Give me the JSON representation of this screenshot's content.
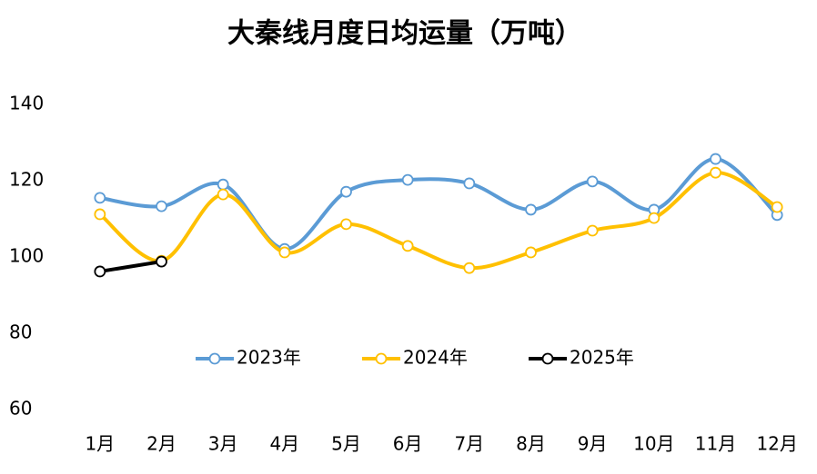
{
  "chart_data": {
    "type": "line",
    "title": "大秦线月度日均运量（万吨）",
    "categories": [
      "1月",
      "2月",
      "3月",
      "4月",
      "5月",
      "6月",
      "7月",
      "8月",
      "9月",
      "10月",
      "11月",
      "12月"
    ],
    "series": [
      {
        "name": "2023年",
        "color": "#5b9bd5",
        "values": [
          115.5,
          113.3,
          119,
          102.1,
          117.1,
          120.2,
          119.3,
          112.4,
          119.8,
          112.4,
          125.7,
          111
        ]
      },
      {
        "name": "2024年",
        "color": "#ffc000",
        "values": [
          111.2,
          99,
          116.4,
          101.2,
          108.6,
          102.9,
          97.1,
          101.2,
          106.9,
          110.2,
          122.1,
          113.1
        ]
      },
      {
        "name": "2025年",
        "color": "#000000",
        "values": [
          96.2,
          98.8,
          null,
          null,
          null,
          null,
          null,
          null,
          null,
          null,
          null,
          null
        ]
      }
    ],
    "ylim": [
      60,
      140
    ],
    "yticks": [
      60,
      80,
      100,
      120,
      140
    ],
    "grid": false,
    "smooth": true,
    "legend": "center"
  }
}
